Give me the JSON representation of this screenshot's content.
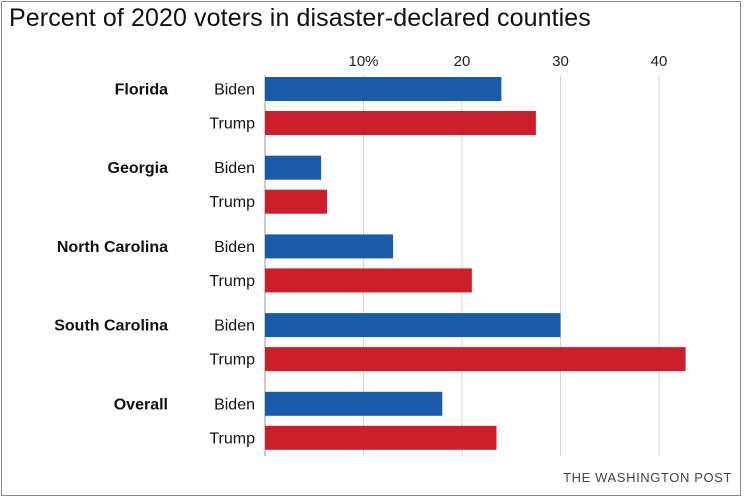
{
  "title": "Percent of 2020 voters in disaster-declared counties",
  "credit": "THE WASHINGTON POST",
  "colors": {
    "biden": "#1a5aab",
    "trump": "#cc1f2b",
    "grid": "#d4d4d4",
    "axis": "#999999"
  },
  "chart_data": {
    "type": "bar",
    "orientation": "horizontal",
    "title": "Percent of 2020 voters in disaster-declared counties",
    "categories": [
      "Florida",
      "Georgia",
      "North Carolina",
      "South Carolina",
      "Overall"
    ],
    "series": [
      {
        "name": "Biden",
        "values": [
          24,
          5.7,
          13,
          30,
          18
        ]
      },
      {
        "name": "Trump",
        "values": [
          27.5,
          6.3,
          21,
          42.7,
          23.5
        ]
      }
    ],
    "x_ticks": [
      10,
      20,
      30,
      40
    ],
    "x_tick_labels": [
      "10%",
      "20",
      "30",
      "40"
    ],
    "xlim": [
      0,
      45
    ],
    "grid": true,
    "legend": "none"
  }
}
